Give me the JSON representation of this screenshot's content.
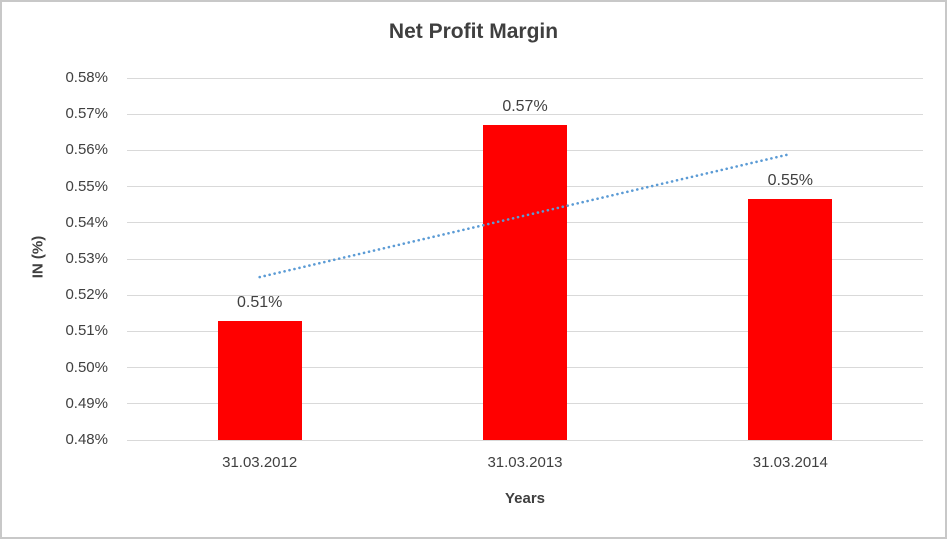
{
  "chart_data": {
    "type": "bar",
    "title": "Net Profit Margin",
    "xlabel": "Years",
    "ylabel": "IN (%)",
    "categories": [
      "31.03.2012",
      "31.03.2013",
      "31.03.2014"
    ],
    "series": [
      {
        "name": "Net Profit Margin",
        "values": [
          0.513,
          0.567,
          0.5465
        ],
        "data_labels": [
          "0.51%",
          "0.57%",
          "0.55%"
        ],
        "color": "#ff0000"
      }
    ],
    "ylim": [
      0.48,
      0.58
    ],
    "y_tick_step": 0.01,
    "y_tick_labels": [
      "0.58%",
      "0.57%",
      "0.56%",
      "0.55%",
      "0.54%",
      "0.53%",
      "0.52%",
      "0.51%",
      "0.50%",
      "0.49%",
      "0.48%"
    ],
    "grid": true,
    "legend": "none",
    "gridline_color": "#d9d9d9",
    "text_color": "#404040",
    "trendline": {
      "type": "linear",
      "style": "dotted",
      "color": "#5b9bd5",
      "start_value": 0.525,
      "end_value": 0.559
    }
  }
}
